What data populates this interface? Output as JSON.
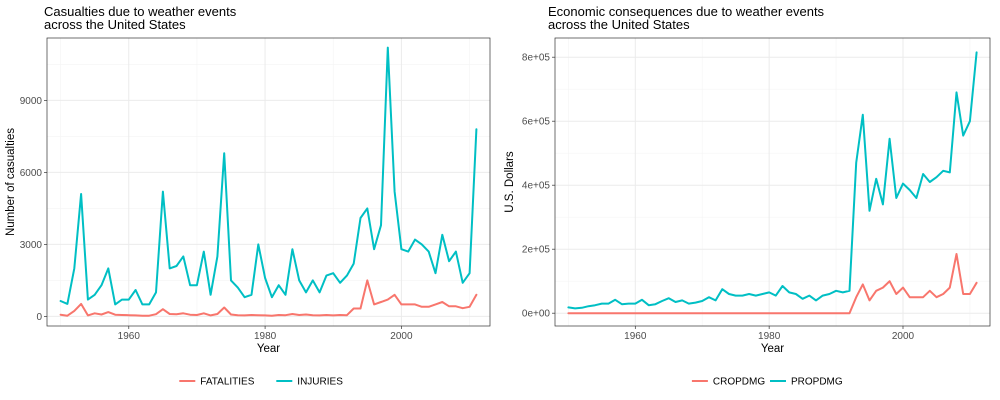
{
  "chart_data": [
    {
      "type": "line",
      "title_lines": [
        "Casualties due to weather events",
        "across the United States"
      ],
      "xlabel": "Year",
      "ylabel": "Number of casualties",
      "xlim": [
        1948,
        2013
      ],
      "ylim": [
        -400,
        11600
      ],
      "xticks": [
        1960,
        1980,
        2000
      ],
      "xtick_labels": [
        "1960",
        "1980",
        "2000"
      ],
      "yticks": [
        0,
        3000,
        6000,
        9000
      ],
      "ytick_labels": [
        "0",
        "3000",
        "6000",
        "9000"
      ],
      "grid": true,
      "legend_position": "bottom",
      "x": [
        1950,
        1951,
        1952,
        1953,
        1954,
        1955,
        1956,
        1957,
        1958,
        1959,
        1960,
        1961,
        1962,
        1963,
        1964,
        1965,
        1966,
        1967,
        1968,
        1969,
        1970,
        1971,
        1972,
        1973,
        1974,
        1975,
        1976,
        1977,
        1978,
        1979,
        1980,
        1981,
        1982,
        1983,
        1984,
        1985,
        1986,
        1987,
        1988,
        1989,
        1990,
        1991,
        1992,
        1993,
        1994,
        1995,
        1996,
        1997,
        1998,
        1999,
        2000,
        2001,
        2002,
        2003,
        2004,
        2005,
        2006,
        2007,
        2008,
        2009,
        2010,
        2011
      ],
      "series": [
        {
          "name": "FATALITIES",
          "color": "#F8766D",
          "values": [
            70,
            30,
            230,
            520,
            40,
            130,
            80,
            180,
            70,
            60,
            50,
            40,
            30,
            30,
            90,
            300,
            100,
            90,
            130,
            70,
            60,
            130,
            40,
            100,
            370,
            80,
            50,
            40,
            60,
            50,
            40,
            30,
            60,
            50,
            100,
            60,
            80,
            50,
            40,
            60,
            40,
            60,
            50,
            330,
            330,
            1500,
            500,
            600,
            700,
            900,
            500,
            500,
            500,
            400,
            400,
            500,
            600,
            420,
            420,
            340,
            400,
            900
          ]
        },
        {
          "name": "INJURIES",
          "color": "#00BFC4",
          "values": [
            640,
            520,
            2000,
            5100,
            700,
            900,
            1300,
            2000,
            500,
            700,
            700,
            1100,
            500,
            500,
            1000,
            5200,
            2000,
            2100,
            2500,
            1300,
            1300,
            2700,
            900,
            2500,
            6800,
            1500,
            1200,
            800,
            900,
            3000,
            1600,
            800,
            1300,
            900,
            2800,
            1500,
            1000,
            1500,
            1000,
            1700,
            1800,
            1400,
            1700,
            2200,
            4100,
            4500,
            2800,
            3800,
            11200,
            5200,
            2800,
            2700,
            3200,
            3000,
            2700,
            1800,
            3400,
            2300,
            2700,
            1400,
            1800,
            7800
          ]
        }
      ]
    },
    {
      "type": "line",
      "title_lines": [
        "Economic consequences due to weather events",
        "across the United States"
      ],
      "xlabel": "Year",
      "ylabel": "U.S. Dollars",
      "xlim": [
        1948,
        2013
      ],
      "ylim": [
        -40000,
        860000
      ],
      "xticks": [
        1960,
        1980,
        2000
      ],
      "xtick_labels": [
        "1960",
        "1980",
        "2000"
      ],
      "yticks": [
        0,
        200000,
        400000,
        600000,
        800000
      ],
      "ytick_labels": [
        "0e+00",
        "2e+05",
        "4e+05",
        "6e+05",
        "8e+05"
      ],
      "grid": true,
      "legend_position": "bottom",
      "x": [
        1950,
        1951,
        1952,
        1953,
        1954,
        1955,
        1956,
        1957,
        1958,
        1959,
        1960,
        1961,
        1962,
        1963,
        1964,
        1965,
        1966,
        1967,
        1968,
        1969,
        1970,
        1971,
        1972,
        1973,
        1974,
        1975,
        1976,
        1977,
        1978,
        1979,
        1980,
        1981,
        1982,
        1983,
        1984,
        1985,
        1986,
        1987,
        1988,
        1989,
        1990,
        1991,
        1992,
        1993,
        1994,
        1995,
        1996,
        1997,
        1998,
        1999,
        2000,
        2001,
        2002,
        2003,
        2004,
        2005,
        2006,
        2007,
        2008,
        2009,
        2010,
        2011
      ],
      "series": [
        {
          "name": "CROPDMG",
          "color": "#F8766D",
          "values": [
            0,
            0,
            0,
            0,
            0,
            0,
            0,
            0,
            0,
            0,
            0,
            0,
            0,
            0,
            0,
            0,
            0,
            0,
            0,
            0,
            0,
            0,
            0,
            0,
            0,
            0,
            0,
            0,
            0,
            0,
            0,
            0,
            0,
            0,
            0,
            0,
            0,
            0,
            0,
            0,
            0,
            0,
            0,
            50000,
            90000,
            40000,
            70000,
            80000,
            100000,
            60000,
            80000,
            50000,
            50000,
            50000,
            70000,
            50000,
            60000,
            80000,
            185000,
            60000,
            60000,
            95000
          ]
        },
        {
          "name": "PROPDMG",
          "color": "#00BFC4",
          "values": [
            18000,
            15000,
            17000,
            22000,
            25000,
            30000,
            30000,
            42000,
            28000,
            30000,
            30000,
            42000,
            25000,
            28000,
            38000,
            47000,
            35000,
            40000,
            30000,
            33000,
            38000,
            50000,
            40000,
            75000,
            60000,
            55000,
            55000,
            60000,
            55000,
            60000,
            65000,
            55000,
            85000,
            65000,
            60000,
            45000,
            55000,
            40000,
            55000,
            60000,
            70000,
            65000,
            70000,
            470000,
            620000,
            320000,
            420000,
            340000,
            545000,
            360000,
            405000,
            385000,
            360000,
            435000,
            410000,
            425000,
            445000,
            440000,
            690000,
            555000,
            600000,
            815000
          ]
        }
      ]
    }
  ]
}
